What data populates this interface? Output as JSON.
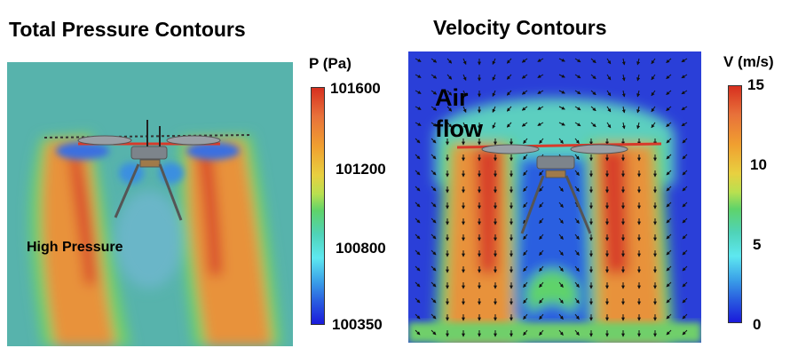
{
  "pressure_panel": {
    "title": "Total Pressure Contours",
    "annotation": "High Pressure",
    "colorbar": {
      "label": "P (Pa)",
      "ticks": [
        "101600",
        "101200",
        "100800",
        "100350"
      ],
      "range": [
        100350,
        101600
      ]
    }
  },
  "velocity_panel": {
    "title": "Velocity Contours",
    "annotation_line1": "Air",
    "annotation_line2": "flow",
    "colorbar": {
      "label": "V (m/s)",
      "ticks": [
        "15",
        "10",
        "5",
        "0"
      ],
      "range": [
        0,
        15
      ]
    }
  },
  "colors": {
    "jet_low": "#1a1adb",
    "jet_mid": "#2fbfa8",
    "jet_high": "#e03a1e",
    "background_field": "#57b3ac"
  }
}
